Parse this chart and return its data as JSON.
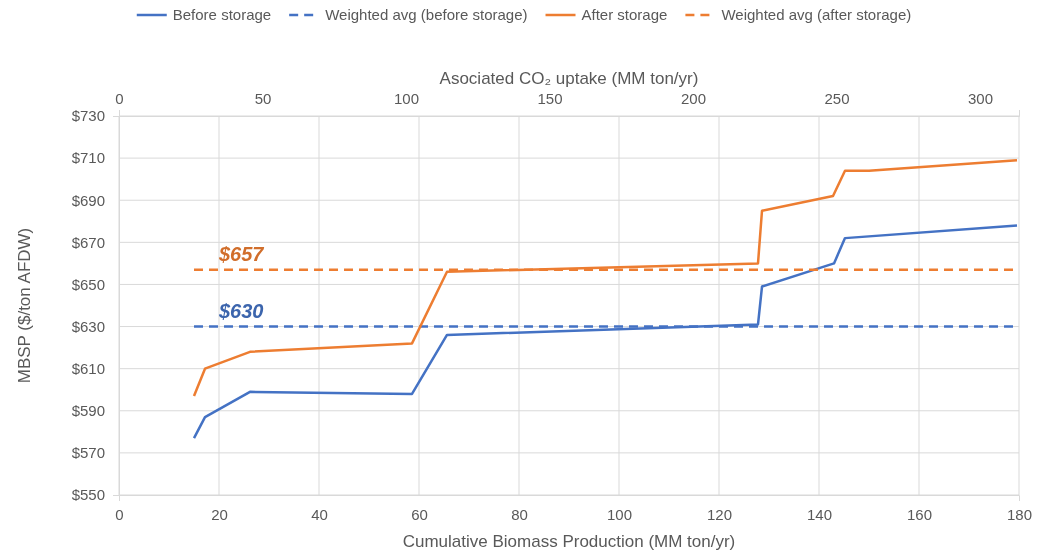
{
  "chart_data": {
    "type": "line",
    "xlabel": "Cumulative Biomass Production (MM ton/yr)",
    "ylabel": "MBSP ($/ton AFDW)",
    "x2label": "Asociated CO₂ uptake (MM ton/yr)",
    "xlim": [
      0,
      180
    ],
    "xticks": [
      0,
      20,
      40,
      60,
      80,
      100,
      120,
      140,
      160,
      180
    ],
    "x2lim": [
      0,
      313.6
    ],
    "x2ticks": [
      0,
      50,
      100,
      150,
      200,
      250,
      300
    ],
    "ylim": [
      550,
      730
    ],
    "yticks": [
      {
        "value": 550,
        "label": "$550"
      },
      {
        "value": 570,
        "label": "$570"
      },
      {
        "value": 590,
        "label": "$590"
      },
      {
        "value": 610,
        "label": "$610"
      },
      {
        "value": 630,
        "label": "$630"
      },
      {
        "value": 650,
        "label": "$650"
      },
      {
        "value": 670,
        "label": "$670"
      },
      {
        "value": 690,
        "label": "$690"
      },
      {
        "value": 710,
        "label": "$710"
      },
      {
        "value": 730,
        "label": "$730"
      }
    ],
    "grid": true,
    "legend": "top",
    "marker": "none",
    "series": [
      {
        "name": "Before storage",
        "color": "#4472c4",
        "line_style": "solid",
        "x": [
          15,
          17.2,
          26.2,
          58.6,
          65.6,
          127.8,
          128.6,
          143,
          145.2,
          179.6
        ],
        "values": [
          577,
          587,
          599,
          598,
          626,
          631,
          649,
          660,
          672,
          678
        ]
      },
      {
        "name": "Weighted avg (before storage)",
        "color": "#4472c4",
        "line_style": "dashed",
        "x": [
          15,
          179.2
        ],
        "values": [
          630,
          630
        ]
      },
      {
        "name": "After storage",
        "color": "#ed7d31",
        "line_style": "solid",
        "x": [
          15,
          17.2,
          26.2,
          58.6,
          65.6,
          127.8,
          128.6,
          142.8,
          145.2,
          150,
          179.6
        ],
        "values": [
          597,
          610,
          618,
          622,
          656,
          660,
          685,
          692,
          704,
          704,
          709
        ]
      },
      {
        "name": "Weighted avg (after storage)",
        "color": "#ed7d31",
        "line_style": "dashed",
        "x": [
          15,
          179.2
        ],
        "values": [
          657,
          657
        ]
      }
    ],
    "annotations": [
      {
        "text": "$657",
        "x": 20,
        "y": 657
      },
      {
        "text": "$630",
        "x": 20,
        "y": 630
      }
    ]
  }
}
